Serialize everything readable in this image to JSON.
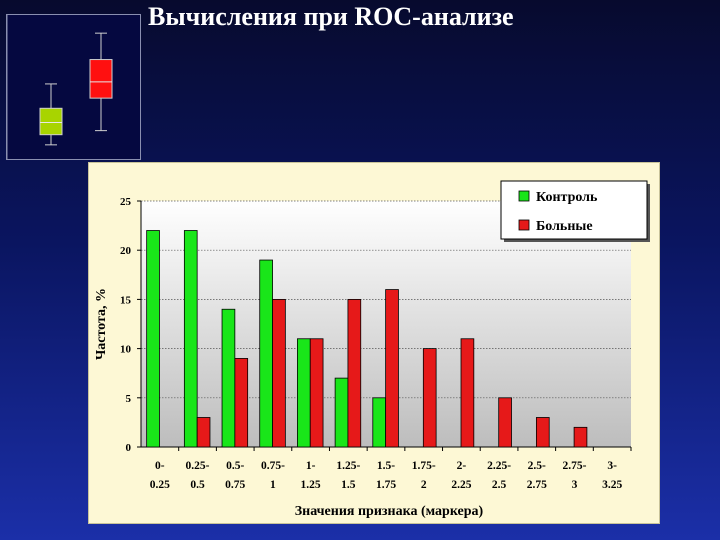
{
  "slide": {
    "title": "Вычисления при ROC-анализе"
  },
  "inset_boxplot": {
    "type": "boxplot",
    "series": [
      {
        "color": "#a8d400",
        "whisker_low": 0.5,
        "q1": 1.0,
        "median": 1.6,
        "q3": 2.3,
        "whisker_high": 3.5
      },
      {
        "color": "#ff1010",
        "whisker_low": 1.2,
        "q1": 2.8,
        "median": 3.6,
        "q3": 4.7,
        "whisker_high": 6.0
      }
    ],
    "ylim": [
      0,
      6.5
    ]
  },
  "chart_data": {
    "type": "bar",
    "title": "",
    "xlabel": "Значения признака (маркера)",
    "ylabel": "Частота, %",
    "ylim": [
      0,
      25
    ],
    "yticks": [
      0,
      5,
      10,
      15,
      20,
      25
    ],
    "grid": true,
    "legend_position": "top-right",
    "categories": [
      [
        "0-",
        "0.25"
      ],
      [
        "0.25-",
        "0.5"
      ],
      [
        "0.5-",
        "0.75"
      ],
      [
        "0.75-",
        "1"
      ],
      [
        "1-",
        "1.25"
      ],
      [
        "1.25-",
        "1.5"
      ],
      [
        "1.5-",
        "1.75"
      ],
      [
        "1.75-",
        "2"
      ],
      [
        "2-",
        "2.25"
      ],
      [
        "2.25-",
        "2.5"
      ],
      [
        "2.5-",
        "2.75"
      ],
      [
        "2.75-",
        "3"
      ],
      [
        "3-",
        "3.25"
      ]
    ],
    "series": [
      {
        "name": "Контроль",
        "color": "#19e619",
        "values": [
          22,
          22,
          14,
          19,
          11,
          7,
          5,
          0,
          0,
          0,
          0,
          0,
          0
        ]
      },
      {
        "name": "Больные",
        "color": "#e61919",
        "values": [
          0,
          3,
          9,
          15,
          11,
          15,
          16,
          10,
          11,
          5,
          3,
          2,
          0
        ]
      }
    ]
  }
}
